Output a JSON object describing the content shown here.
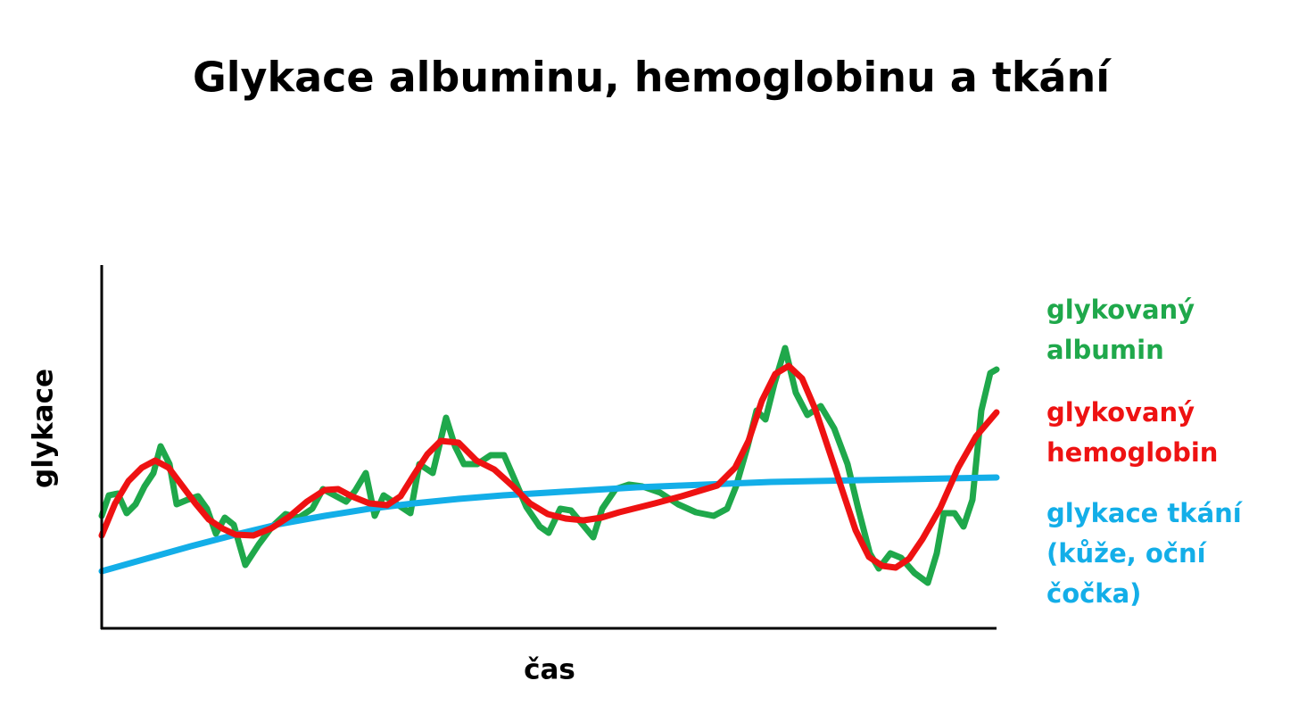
{
  "chart_data": {
    "type": "line",
    "title": "Glykace albuminu, hemoglobinu a tkání",
    "x_label": "čas",
    "y_label": "glykace",
    "xlim": [
      0,
      1003
    ],
    "ylim": [
      0,
      407
    ],
    "series": [
      {
        "name": "glykovaný albumin",
        "color": "#1fa84b",
        "x": [
          0,
          8,
          18,
          28,
          38,
          48,
          58,
          66,
          76,
          84,
          96,
          108,
          118,
          128,
          138,
          148,
          161,
          176,
          191,
          206,
          221,
          236,
          248,
          261,
          274,
          284,
          296,
          306,
          316,
          331,
          346,
          356,
          371,
          386,
          396,
          406,
          421,
          436,
          451,
          464,
          476,
          491,
          501,
          514,
          526,
          541,
          551,
          561,
          576,
          591,
          606,
          626,
          646,
          666,
          686,
          701,
          711,
          724,
          734,
          744,
          754,
          766,
          778,
          791,
          806,
          821,
          836,
          848,
          861,
          871,
          884,
          896,
          911,
          926,
          936,
          944,
          956,
          966,
          976,
          986,
          996,
          1003
        ],
        "values": [
          126,
          149,
          151,
          129,
          139,
          159,
          174,
          204,
          184,
          139,
          144,
          148,
          134,
          106,
          124,
          116,
          71,
          94,
          114,
          128,
          124,
          134,
          156,
          149,
          142,
          154,
          174,
          126,
          149,
          139,
          129,
          184,
          174,
          236,
          204,
          184,
          184,
          194,
          194,
          164,
          136,
          114,
          107,
          134,
          132,
          114,
          102,
          134,
          156,
          161,
          159,
          152,
          139,
          130,
          126,
          134,
          159,
          204,
          244,
          234,
          274,
          314,
          264,
          239,
          249,
          224,
          184,
          134,
          84,
          67,
          84,
          79,
          62,
          51,
          84,
          129,
          129,
          114,
          144,
          244,
          286,
          290
        ]
      },
      {
        "name": "glykace tkání (kůže, oční čočka)",
        "color": "#13aee8",
        "x": [
          0,
          50,
          100,
          150,
          200,
          250,
          300,
          350,
          400,
          450,
          500,
          550,
          600,
          650,
          700,
          750,
          800,
          850,
          900,
          950,
          1003
        ],
        "values": [
          64,
          78,
          92,
          105,
          117,
          126,
          134,
          140,
          145,
          149,
          152,
          155,
          158,
          160,
          162,
          164,
          165,
          166,
          167,
          168,
          169
        ]
      },
      {
        "name": "glykovaný hemoglobin",
        "color": "#ee1212",
        "x": [
          0,
          15,
          30,
          45,
          60,
          75,
          90,
          105,
          120,
          135,
          150,
          170,
          190,
          210,
          230,
          250,
          265,
          280,
          300,
          320,
          335,
          350,
          365,
          380,
          400,
          420,
          440,
          460,
          480,
          500,
          520,
          540,
          560,
          580,
          600,
          620,
          650,
          690,
          710,
          725,
          740,
          755,
          770,
          785,
          800,
          815,
          830,
          845,
          860,
          875,
          890,
          905,
          920,
          940,
          960,
          980,
          1003
        ],
        "values": [
          104,
          140,
          165,
          180,
          188,
          180,
          160,
          140,
          122,
          112,
          105,
          104,
          112,
          125,
          142,
          155,
          156,
          148,
          140,
          138,
          148,
          172,
          195,
          210,
          208,
          188,
          178,
          160,
          140,
          128,
          123,
          121,
          124,
          130,
          135,
          140,
          148,
          160,
          180,
          210,
          255,
          285,
          294,
          280,
          245,
          200,
          155,
          110,
          80,
          70,
          68,
          78,
          100,
          135,
          180,
          215,
          242
        ]
      }
    ]
  }
}
